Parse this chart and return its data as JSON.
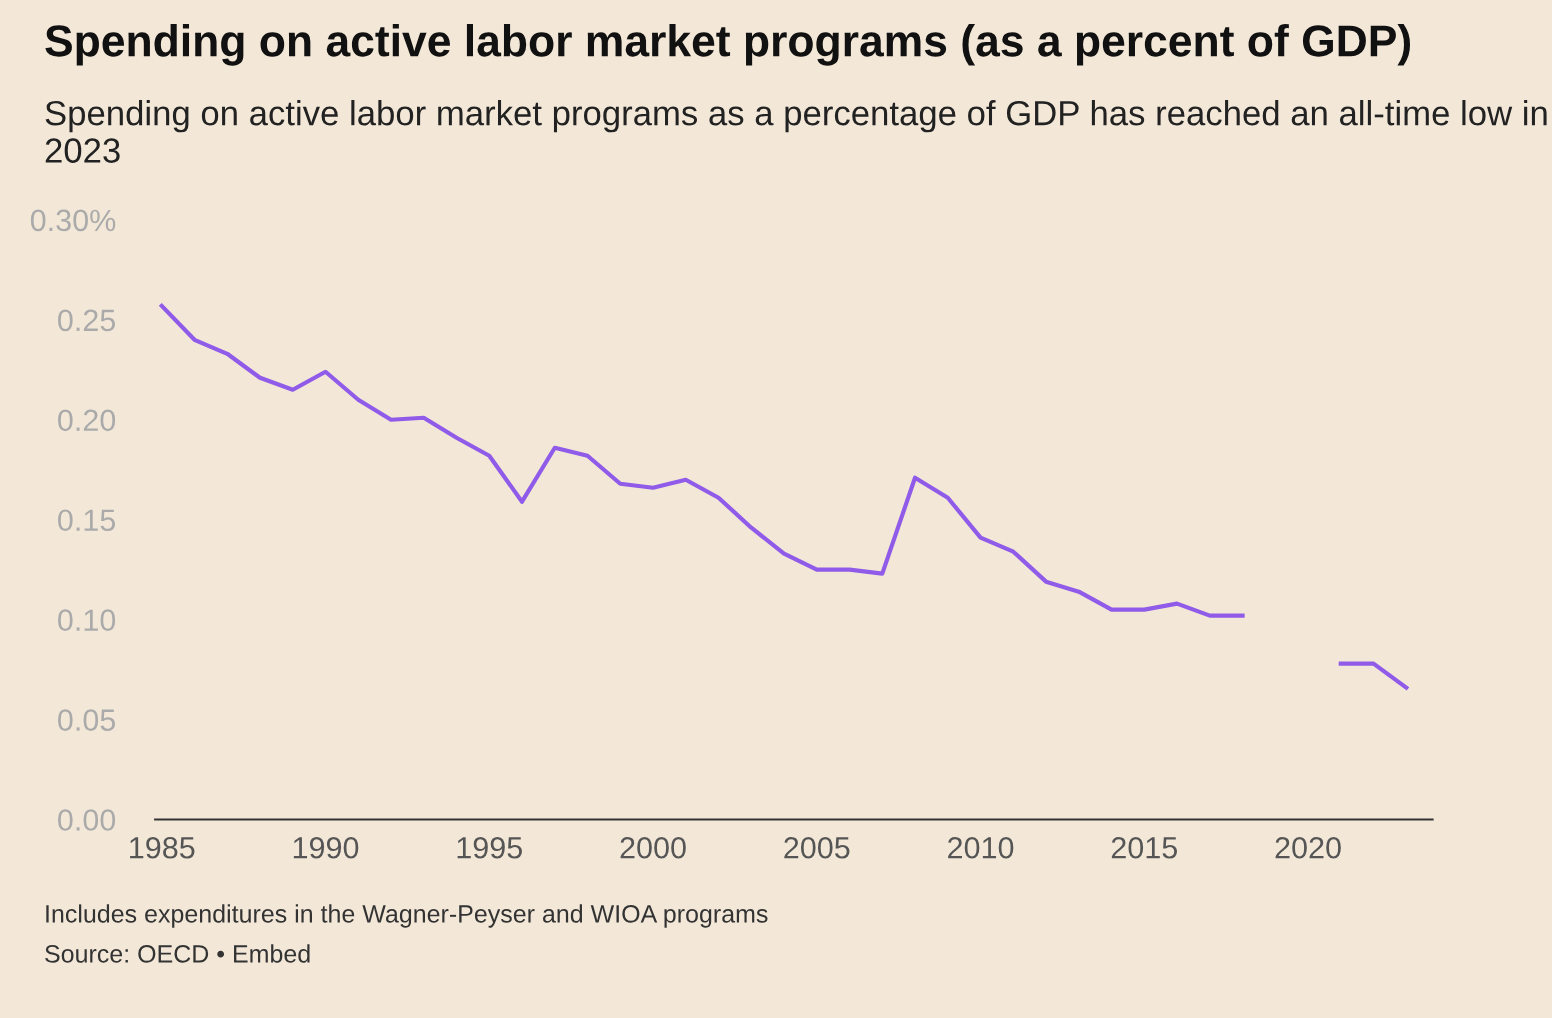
{
  "chart_data": {
    "type": "line",
    "title": "Spending on active labor market programs (as a percent of GDP)",
    "subtitle": "Spending on active labor market programs as a percentage of GDP has reached an all-time low in 2023",
    "annotations": [
      "Includes expenditures in the Wagner-Peyser and WIOA programs",
      "Source: OECD • Embed"
    ],
    "x": [
      1985,
      1986,
      1987,
      1988,
      1989,
      1990,
      1991,
      1992,
      1993,
      1994,
      1995,
      1996,
      1997,
      1998,
      1999,
      2000,
      2001,
      2002,
      2003,
      2004,
      2005,
      2006,
      2007,
      2008,
      2009,
      2010,
      2011,
      2012,
      2013,
      2014,
      2015,
      2016,
      2017,
      2018,
      2019,
      2020,
      2021,
      2022,
      2023
    ],
    "series": [
      {
        "color": "#8f5be8",
        "values": [
          0.257,
          0.24,
          0.233,
          0.221,
          0.215,
          0.224,
          0.21,
          0.2,
          0.201,
          0.191,
          0.182,
          0.159,
          0.186,
          0.182,
          0.168,
          0.166,
          0.17,
          0.161,
          0.146,
          0.133,
          0.125,
          0.125,
          0.123,
          0.171,
          0.161,
          0.141,
          0.134,
          0.119,
          0.114,
          0.105,
          0.105,
          0.108,
          0.102,
          0.102,
          null,
          null,
          0.078,
          0.078,
          0.066
        ]
      }
    ],
    "xlim": [
      1984.8,
      2023.8
    ],
    "ylim": [
      0,
      0.3
    ],
    "xticks": [
      1985,
      1990,
      1995,
      2000,
      2005,
      2010,
      2015,
      2020
    ],
    "yticks": [
      {
        "value": 0,
        "label": "0.00"
      },
      {
        "value": 0.05,
        "label": "0.05"
      },
      {
        "value": 0.1,
        "label": "0.10"
      },
      {
        "value": 0.15,
        "label": "0.15"
      },
      {
        "value": 0.2,
        "label": "0.20"
      },
      {
        "value": 0.25,
        "label": "0.25"
      },
      {
        "value": 0.3,
        "label": "0.30%"
      }
    ],
    "grid": false,
    "legend": false,
    "marker": "none",
    "line_style": "solid"
  }
}
